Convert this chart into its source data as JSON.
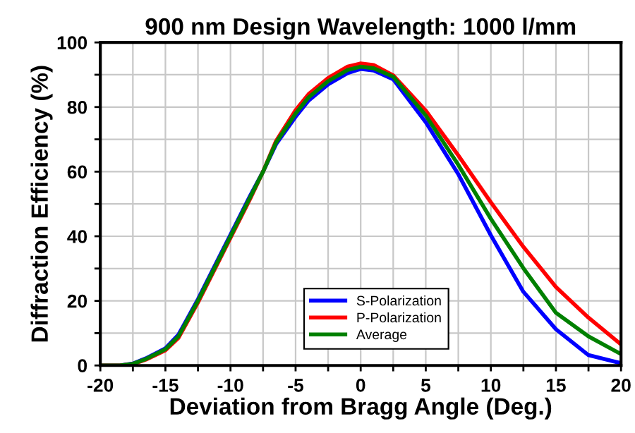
{
  "chart_data": {
    "type": "line",
    "title": "900 nm Design Wavelength: 1000 l/mm",
    "xlabel": "Deviation from Bragg Angle (Deg.)",
    "ylabel": "Diffraction Efficiency (%)",
    "xlim": [
      -20,
      20
    ],
    "ylim": [
      0,
      100
    ],
    "xticks": [
      -20,
      {
        "value": -17.5,
        "label": null
      },
      -15,
      {
        "value": -12.5,
        "label": null
      },
      -10,
      {
        "value": -7.5,
        "label": null
      },
      -5,
      {
        "value": -2.5,
        "label": null
      },
      0,
      {
        "value": 2.5,
        "label": null
      },
      5,
      {
        "value": 7.5,
        "label": null
      },
      10,
      {
        "value": 12.5,
        "label": null
      },
      15,
      {
        "value": 17.5,
        "label": null
      },
      20
    ],
    "yticks": [
      0,
      {
        "value": 10,
        "label": null
      },
      20,
      {
        "value": 30,
        "label": null
      },
      40,
      {
        "value": 50,
        "label": null
      },
      60,
      {
        "value": 70,
        "label": null
      },
      80,
      {
        "value": 90,
        "label": null
      },
      100
    ],
    "grid": true,
    "legend": "bottom",
    "marker": "none",
    "line_style": "solid",
    "x": [
      -20,
      -18.5,
      -17.5,
      -16.5,
      -15,
      -14,
      -12.5,
      -11,
      -10,
      -8.5,
      -7.5,
      -6.5,
      -5,
      -4,
      -2.5,
      -1,
      0,
      1,
      2.5,
      5,
      7.5,
      10,
      12.5,
      15,
      17.5,
      20
    ],
    "series": [
      {
        "name": "S-Polarization",
        "color": "#0000ff",
        "values": [
          0,
          0,
          0.6,
          2.2,
          5.3,
          9.5,
          20.5,
          32.5,
          40.5,
          52.5,
          60,
          68.5,
          77,
          82,
          87,
          90.5,
          91.8,
          91.3,
          88.6,
          75.3,
          59.2,
          40.3,
          22.8,
          11.2,
          3.2,
          0.7
        ]
      },
      {
        "name": "P-Polarization",
        "color": "#ff0000",
        "values": [
          0,
          0,
          0.4,
          1.8,
          4.7,
          8.5,
          19.5,
          31.5,
          39.5,
          51.5,
          60,
          69.5,
          79,
          84,
          89,
          92.5,
          93.5,
          93,
          89.8,
          78.9,
          65,
          50.5,
          36.7,
          24.3,
          14.8,
          6.5
        ]
      },
      {
        "name": "Average",
        "color": "#008000",
        "values": [
          0,
          0,
          0.5,
          2,
          5,
          9,
          20,
          32,
          40,
          52,
          60,
          69,
          78,
          83,
          88,
          91.5,
          92.5,
          92,
          89.4,
          77.4,
          62.1,
          45.4,
          30.1,
          16.3,
          9,
          3.5
        ]
      }
    ]
  }
}
